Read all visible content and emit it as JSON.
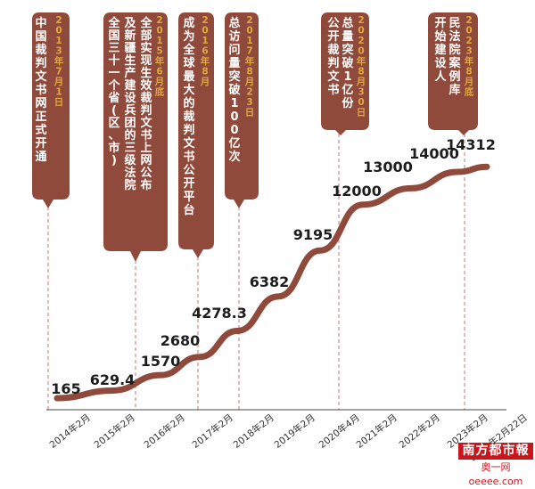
{
  "chart_data": {
    "type": "line",
    "categories": [
      "2014年2月",
      "2015年2月",
      "2016年2月",
      "2017年2月",
      "2018年2月",
      "2019年2月",
      "2020年4月",
      "2021年2月",
      "2022年2月",
      "2023年2月",
      "2023年2月22日"
    ],
    "values": [
      165,
      629.4,
      1570,
      2680,
      4278.3,
      6382,
      9195,
      12000,
      13000,
      14000,
      14312
    ],
    "value_labels": [
      "165",
      "629.4",
      "1570",
      "2680",
      "4278.3",
      "6382",
      "9195",
      "12000",
      "13000",
      "14000",
      "14312"
    ],
    "ylim": [
      0,
      15500
    ],
    "line_color": "#8f4a3c",
    "callout_color": "#8f4a3c",
    "date_color": "#e1a63c",
    "annotations": [
      {
        "date": "2013年7月1日",
        "text": [
          "中国裁判",
          "文书网正",
          "式开通"
        ],
        "text_cols": [
          "中国裁判文书网正式开通"
        ]
      },
      {
        "date": "2015年6月底",
        "text_lines": [
          "全国三十一个省(区、市)",
          "及新疆生产建设兵团的三级法院",
          "全部实现生效裁判文书上网公布"
        ]
      },
      {
        "date": "2016年8月",
        "text_cols": [
          "成为全球最大的裁判文书公开平台"
        ]
      },
      {
        "date": "2017年8月23日",
        "text_cols": [
          "总访问量突破100亿次"
        ]
      },
      {
        "date": "2020年8月30日",
        "text_cols": [
          "公开裁判文书总量突破1亿份"
        ]
      },
      {
        "date": "2023年8月底",
        "text_cols": [
          "开始建设人民法院案例库"
        ]
      }
    ]
  },
  "brand": {
    "name": "南方都市報",
    "site": "奥一网oeeee.com"
  }
}
